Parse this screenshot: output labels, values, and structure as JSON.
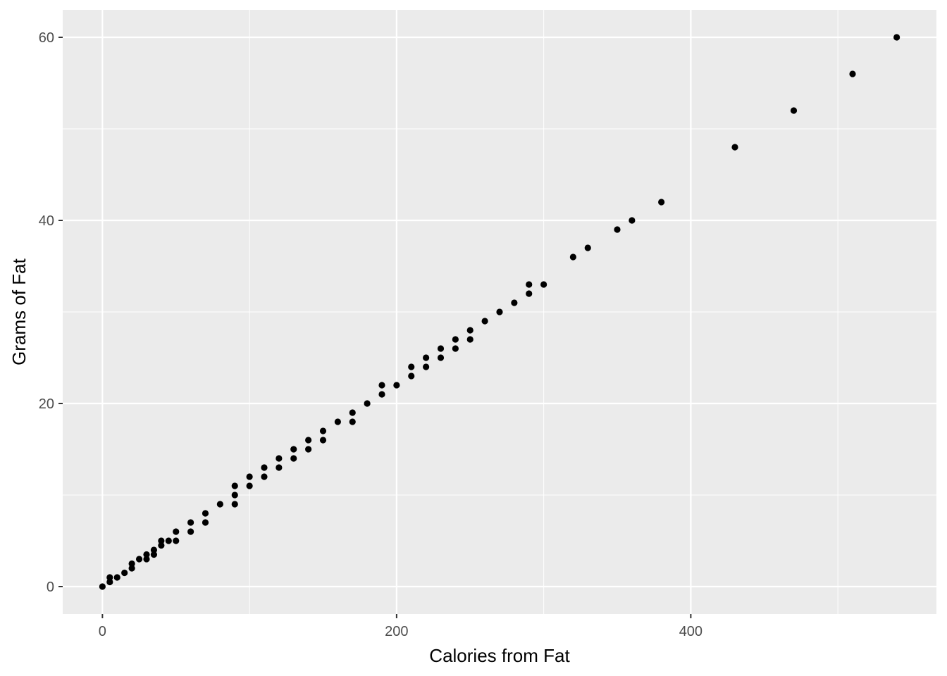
{
  "chart_data": {
    "type": "scatter",
    "title": "",
    "xlabel": "Calories from Fat",
    "ylabel": "Grams of Fat",
    "xlim": [
      -27,
      567
    ],
    "ylim": [
      -3,
      63
    ],
    "x_ticks": [
      0,
      200,
      400
    ],
    "x_minor": [
      100,
      300,
      500
    ],
    "y_ticks": [
      0,
      20,
      40,
      60
    ],
    "y_minor": [
      10,
      30,
      50
    ],
    "grid": true,
    "legend": "none",
    "colors": {
      "panel": "#ebebeb",
      "grid": "#ffffff",
      "point": "#000000"
    },
    "points": [
      [
        0,
        0
      ],
      [
        5,
        0.5
      ],
      [
        5,
        1
      ],
      [
        10,
        1
      ],
      [
        15,
        1.5
      ],
      [
        20,
        2
      ],
      [
        20,
        2.5
      ],
      [
        25,
        3
      ],
      [
        30,
        3
      ],
      [
        30,
        3.5
      ],
      [
        35,
        3.5
      ],
      [
        35,
        4
      ],
      [
        40,
        4.5
      ],
      [
        40,
        5
      ],
      [
        45,
        5
      ],
      [
        50,
        5
      ],
      [
        50,
        6
      ],
      [
        60,
        6
      ],
      [
        60,
        7
      ],
      [
        70,
        7
      ],
      [
        70,
        8
      ],
      [
        80,
        9
      ],
      [
        90,
        9
      ],
      [
        90,
        10
      ],
      [
        90,
        11
      ],
      [
        100,
        11
      ],
      [
        100,
        12
      ],
      [
        110,
        12
      ],
      [
        110,
        13
      ],
      [
        120,
        13
      ],
      [
        120,
        14
      ],
      [
        130,
        14
      ],
      [
        130,
        15
      ],
      [
        140,
        15
      ],
      [
        140,
        16
      ],
      [
        150,
        16
      ],
      [
        150,
        17
      ],
      [
        160,
        18
      ],
      [
        170,
        18
      ],
      [
        170,
        19
      ],
      [
        180,
        20
      ],
      [
        190,
        21
      ],
      [
        190,
        22
      ],
      [
        200,
        22
      ],
      [
        210,
        23
      ],
      [
        210,
        24
      ],
      [
        220,
        24
      ],
      [
        220,
        25
      ],
      [
        230,
        25
      ],
      [
        230,
        26
      ],
      [
        240,
        26
      ],
      [
        240,
        27
      ],
      [
        250,
        27
      ],
      [
        250,
        28
      ],
      [
        260,
        29
      ],
      [
        270,
        30
      ],
      [
        280,
        31
      ],
      [
        290,
        32
      ],
      [
        290,
        33
      ],
      [
        300,
        33
      ],
      [
        320,
        36
      ],
      [
        330,
        37
      ],
      [
        350,
        39
      ],
      [
        360,
        40
      ],
      [
        380,
        42
      ],
      [
        430,
        48
      ],
      [
        470,
        52
      ],
      [
        510,
        56
      ],
      [
        540,
        60
      ]
    ]
  }
}
